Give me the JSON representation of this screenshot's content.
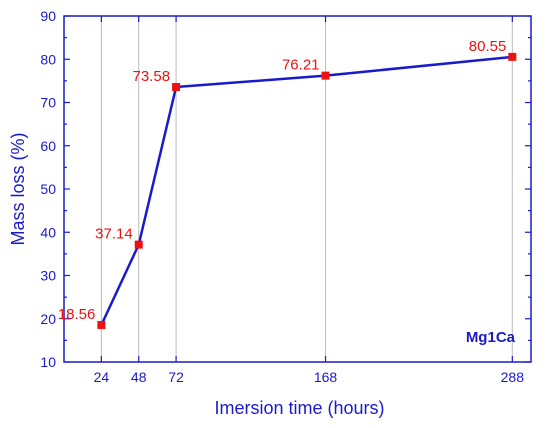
{
  "chart_data": {
    "type": "line",
    "x": [
      24,
      48,
      72,
      168,
      288
    ],
    "y": [
      18.56,
      37.14,
      73.58,
      76.21,
      80.55
    ],
    "data_labels": [
      "18.56",
      "37.14",
      "73.58",
      "76.21",
      "80.55"
    ],
    "x_ticks": [
      24,
      48,
      72,
      168,
      288
    ],
    "y_ticks": [
      10,
      20,
      30,
      40,
      50,
      60,
      70,
      80,
      90
    ],
    "xlabel": "Imersion time (hours)",
    "ylabel": "Mass loss (%)",
    "annotation": "Mg1Ca",
    "xlim": [
      0,
      300
    ],
    "ylim": [
      10,
      90
    ],
    "grid": true,
    "colors": {
      "line": "#1a1acc",
      "marker": "#ee1111",
      "data_label": "#ee1111",
      "axis_text": "#1a1acc",
      "frame": "#1a1acc",
      "grid": "#bbbbbb",
      "annotation": "#1a1acc"
    }
  }
}
